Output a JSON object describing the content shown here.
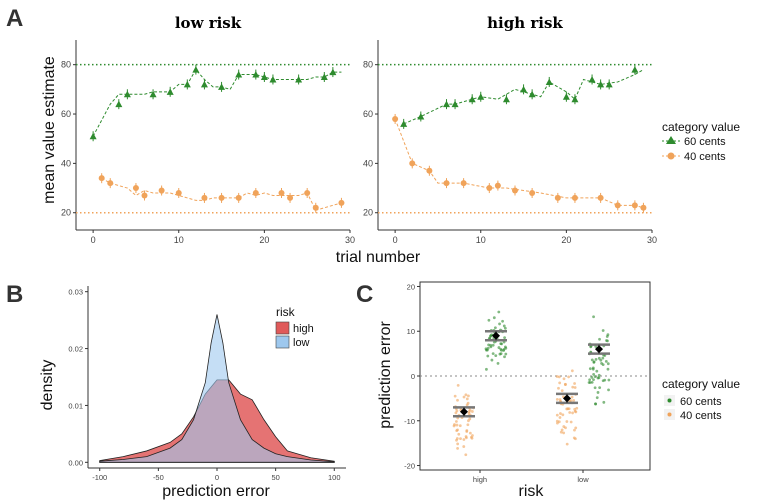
{
  "colors": {
    "green": "#2e8b2e",
    "orange": "#f0a35a",
    "high": "#e05a5a",
    "low": "#9ec8ee",
    "overlap": "#b89ccc",
    "title_low": "#3b73c8",
    "title_high": "#e03c3c"
  },
  "panel_a": {
    "letter": "A",
    "xlabel": "trial number"
  },
  "panel_b": {
    "letter": "B"
  },
  "panel_c": {
    "letter": "C"
  },
  "chart_data": [
    {
      "type": "line",
      "title": "low risk",
      "ylabel": "mean value estimate",
      "xlabel": "trial number",
      "xlim": [
        -2,
        30
      ],
      "ylim": [
        13,
        90
      ],
      "xticks": [
        "0",
        "10",
        "20",
        "30"
      ],
      "yticks": [
        "20",
        "40",
        "60",
        "80"
      ],
      "reference_lines": [
        80,
        20
      ],
      "series": [
        {
          "name": "60 cents",
          "x": [
            0,
            2,
            3,
            4,
            6,
            7,
            8,
            9,
            10,
            11,
            12,
            13,
            14,
            15,
            16,
            17,
            18,
            19,
            20,
            21,
            22,
            23,
            24,
            25,
            26,
            27,
            28,
            29
          ],
          "values": [
            51,
            64,
            68,
            68,
            68,
            69,
            69,
            69,
            72,
            72,
            78,
            74,
            71,
            71,
            70,
            76,
            76,
            76,
            75,
            74,
            74,
            74,
            74,
            74,
            75,
            75,
            77,
            77
          ]
        },
        {
          "name": "40 cents",
          "x": [
            1,
            2,
            4,
            5,
            6,
            7,
            8,
            9,
            10,
            11,
            12,
            13,
            14,
            15,
            16,
            17,
            18,
            19,
            20,
            21,
            22,
            23,
            24,
            25,
            26,
            27,
            28,
            29
          ],
          "values": [
            34,
            32,
            30,
            27,
            29,
            28,
            28,
            28,
            27,
            26,
            25,
            25,
            26,
            26,
            26,
            26,
            28,
            27,
            28,
            27,
            27,
            27,
            27,
            28,
            21,
            22,
            23,
            24
          ]
        }
      ],
      "sample_points": {
        "60 cents": {
          "x": [
            0,
            3,
            4,
            7,
            9,
            11,
            12,
            13,
            15,
            17,
            19,
            20,
            21,
            24,
            27,
            28
          ],
          "y": [
            51,
            64,
            68,
            68,
            69,
            72,
            78,
            72,
            71,
            76,
            76,
            75,
            74,
            74,
            75,
            77
          ]
        },
        "40 cents": {
          "x": [
            1,
            2,
            5,
            6,
            8,
            10,
            13,
            15,
            17,
            19,
            22,
            23,
            25,
            26,
            29
          ],
          "y": [
            34,
            32,
            30,
            27,
            29,
            28,
            26,
            26,
            26,
            28,
            28,
            26,
            28,
            22,
            24
          ]
        }
      }
    },
    {
      "type": "line",
      "title": "high risk",
      "xlim": [
        -2,
        30
      ],
      "ylim": [
        13,
        90
      ],
      "xticks": [
        "0",
        "10",
        "20",
        "30"
      ],
      "yticks": [
        "20",
        "40",
        "60",
        "80"
      ],
      "reference_lines": [
        80,
        20
      ],
      "series": [
        {
          "name": "60 cents",
          "x": [
            1,
            3,
            6,
            7,
            9,
            10,
            12,
            14,
            16,
            17,
            18,
            20,
            21,
            22,
            24,
            26,
            28,
            29
          ],
          "values": [
            56,
            59,
            64,
            64,
            66,
            67,
            66,
            70,
            68,
            67,
            73,
            69,
            66,
            74,
            72,
            73,
            76,
            78
          ]
        },
        {
          "name": "40 cents",
          "x": [
            0,
            2,
            4,
            5,
            8,
            11,
            13,
            15,
            17,
            20,
            22,
            24,
            26,
            28,
            29
          ],
          "values": [
            58,
            40,
            37,
            32,
            32,
            30,
            30,
            29,
            28,
            26,
            26,
            26,
            23,
            23,
            22
          ]
        }
      ],
      "sample_points": {
        "60 cents": {
          "x": [
            1,
            3,
            6,
            7,
            9,
            10,
            13,
            15,
            16,
            18,
            20,
            21,
            23,
            24,
            25,
            28
          ],
          "y": [
            56,
            59,
            64,
            64,
            66,
            67,
            66,
            70,
            68,
            73,
            67,
            66,
            74,
            72,
            72,
            78
          ]
        },
        "40 cents": {
          "x": [
            0,
            2,
            4,
            6,
            8,
            11,
            12,
            14,
            16,
            19,
            21,
            24,
            26,
            28,
            29
          ],
          "y": [
            58,
            40,
            37,
            32,
            32,
            30,
            31,
            29,
            28,
            26,
            26,
            26,
            23,
            23,
            22
          ]
        }
      }
    },
    {
      "type": "area",
      "ylabel": "density",
      "xlabel": "prediction error",
      "xlim": [
        -110,
        110
      ],
      "ylim": [
        -0.001,
        0.031
      ],
      "xticks": [
        "-100",
        "-50",
        "0",
        "50",
        "100"
      ],
      "yticks": [
        "0.00",
        "0.01",
        "0.02",
        "0.03"
      ],
      "legend_title": "risk",
      "series": [
        {
          "name": "high",
          "x": [
            -100,
            -80,
            -60,
            -40,
            -30,
            -20,
            -10,
            0,
            10,
            20,
            30,
            40,
            50,
            60,
            80,
            100
          ],
          "values": [
            0.0003,
            0.001,
            0.002,
            0.0035,
            0.005,
            0.008,
            0.012,
            0.0145,
            0.0145,
            0.012,
            0.011,
            0.0075,
            0.0045,
            0.002,
            0.0008,
            0.0002
          ]
        },
        {
          "name": "low",
          "x": [
            -100,
            -80,
            -60,
            -40,
            -30,
            -20,
            -10,
            -5,
            0,
            5,
            10,
            20,
            30,
            40,
            50,
            60,
            80,
            100
          ],
          "values": [
            0.0002,
            0.0005,
            0.001,
            0.0025,
            0.004,
            0.0075,
            0.014,
            0.021,
            0.026,
            0.021,
            0.014,
            0.0075,
            0.004,
            0.0025,
            0.0015,
            0.001,
            0.0004,
            0.0001
          ]
        }
      ]
    },
    {
      "type": "scatter",
      "ylabel": "prediction error",
      "xlabel": "risk",
      "categories": [
        "high",
        "low"
      ],
      "ylim": [
        -21,
        21
      ],
      "yticks": [
        "-20",
        "-10",
        "0",
        "10",
        "20"
      ],
      "reference_lines": [
        0
      ],
      "series": [
        {
          "name": "60 cents",
          "means": [
            9,
            6
          ],
          "ci_low": [
            8,
            5
          ],
          "ci_high": [
            10,
            7
          ],
          "spread": [
            [
              0,
              19
            ],
            [
              -10,
              18
            ]
          ]
        },
        {
          "name": "40 cents",
          "means": [
            -8,
            -5
          ],
          "ci_low": [
            -9,
            -6
          ],
          "ci_high": [
            -7,
            -4
          ],
          "spread": [
            [
              -20,
              3
            ],
            [
              -19,
              7
            ]
          ]
        }
      ],
      "legend_title": "category value"
    }
  ]
}
